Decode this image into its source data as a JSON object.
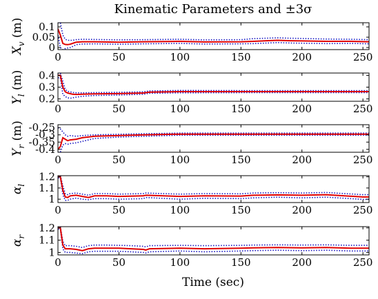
{
  "chart_data": {
    "type": "line",
    "title": "Kinematic Parameters and ±3σ",
    "xlabel": "Time (sec)",
    "xlim": [
      0,
      255
    ],
    "xticks": [
      0,
      50,
      100,
      150,
      200,
      250
    ],
    "colors": {
      "mean": "#e00000",
      "bounds": "#1010c0"
    },
    "panels": [
      {
        "ylabel": "X_v (m)",
        "ylabel_main": "X",
        "ylabel_sub": "v",
        "ylabel_unit": " (m)",
        "ylim": [
          -0.01,
          0.12
        ],
        "yticks": [
          0,
          0.05,
          0.1
        ],
        "yticklabels": [
          "0",
          "0.05",
          "0.1"
        ],
        "x": [
          0,
          2,
          4,
          6,
          8,
          10,
          12,
          15,
          20,
          30,
          50,
          70,
          100,
          120,
          150,
          160,
          180,
          190,
          200,
          220,
          240,
          255
        ],
        "mean": [
          0.09,
          0.06,
          0.02,
          0.015,
          0.014,
          0.016,
          0.02,
          0.026,
          0.028,
          0.028,
          0.026,
          0.028,
          0.03,
          0.027,
          0.028,
          0.03,
          0.035,
          0.033,
          0.032,
          0.03,
          0.03,
          0.028
        ],
        "upper": [
          0.12,
          0.12,
          0.06,
          0.04,
          0.035,
          0.035,
          0.035,
          0.038,
          0.04,
          0.039,
          0.037,
          0.038,
          0.04,
          0.037,
          0.038,
          0.043,
          0.047,
          0.045,
          0.044,
          0.041,
          0.04,
          0.038
        ],
        "lower": [
          0.06,
          0.0,
          -0.01,
          -0.005,
          -0.002,
          0.0,
          0.005,
          0.014,
          0.017,
          0.018,
          0.016,
          0.018,
          0.02,
          0.017,
          0.018,
          0.019,
          0.024,
          0.022,
          0.021,
          0.019,
          0.02,
          0.018
        ]
      },
      {
        "ylabel": "Y_l (m)",
        "ylabel_main": "Y",
        "ylabel_sub": "l",
        "ylabel_unit": " (m)",
        "ylim": [
          0.18,
          0.42
        ],
        "yticks": [
          0.2,
          0.3,
          0.4
        ],
        "yticklabels": [
          "0.2",
          "0.3",
          "0.4"
        ],
        "x": [
          0,
          2,
          4,
          6,
          8,
          10,
          12,
          15,
          20,
          30,
          50,
          70,
          75,
          100,
          150,
          200,
          255
        ],
        "mean": [
          0.4,
          0.4,
          0.3,
          0.26,
          0.25,
          0.245,
          0.24,
          0.238,
          0.24,
          0.243,
          0.245,
          0.25,
          0.258,
          0.262,
          0.262,
          0.262,
          0.262
        ],
        "upper": [
          0.42,
          0.42,
          0.35,
          0.28,
          0.265,
          0.26,
          0.255,
          0.252,
          0.252,
          0.254,
          0.256,
          0.26,
          0.268,
          0.272,
          0.271,
          0.271,
          0.271
        ],
        "lower": [
          0.38,
          0.38,
          0.24,
          0.22,
          0.21,
          0.205,
          0.21,
          0.215,
          0.222,
          0.229,
          0.233,
          0.24,
          0.248,
          0.252,
          0.253,
          0.253,
          0.253
        ]
      },
      {
        "ylabel": "Y_r (m)",
        "ylabel_main": "Y",
        "ylabel_sub": "r",
        "ylabel_unit": " (m)",
        "ylim": [
          -0.42,
          -0.23
        ],
        "yticks": [
          -0.4,
          -0.35,
          -0.3,
          -0.25
        ],
        "yticklabels": [
          "-0.4",
          "-0.35",
          "-0.3",
          "-0.25"
        ],
        "x": [
          0,
          2,
          4,
          6,
          8,
          10,
          15,
          20,
          30,
          50,
          70,
          100,
          150,
          200,
          255
        ],
        "mean": [
          -0.4,
          -0.38,
          -0.32,
          -0.33,
          -0.34,
          -0.335,
          -0.33,
          -0.32,
          -0.31,
          -0.305,
          -0.3,
          -0.295,
          -0.295,
          -0.295,
          -0.295
        ],
        "upper": [
          -0.25,
          -0.26,
          -0.28,
          -0.3,
          -0.31,
          -0.305,
          -0.31,
          -0.305,
          -0.3,
          -0.296,
          -0.292,
          -0.288,
          -0.288,
          -0.288,
          -0.288
        ],
        "lower": [
          -0.42,
          -0.42,
          -0.37,
          -0.36,
          -0.365,
          -0.36,
          -0.355,
          -0.345,
          -0.325,
          -0.315,
          -0.31,
          -0.302,
          -0.302,
          -0.302,
          -0.302
        ]
      },
      {
        "ylabel": "α_l",
        "ylabel_main": "α",
        "ylabel_sub": "l",
        "ylabel_unit": "",
        "ylim": [
          0.97,
          1.21
        ],
        "yticks": [
          1.0,
          1.1,
          1.2
        ],
        "yticklabels": [
          "1",
          "1.1",
          "1.2"
        ],
        "x": [
          0,
          2,
          4,
          6,
          8,
          10,
          15,
          20,
          25,
          30,
          40,
          50,
          70,
          72,
          100,
          120,
          150,
          160,
          180,
          200,
          220,
          250,
          255
        ],
        "mean": [
          1.2,
          1.2,
          1.08,
          1.02,
          1.015,
          1.03,
          1.035,
          1.025,
          1.015,
          1.03,
          1.03,
          1.025,
          1.03,
          1.035,
          1.025,
          1.03,
          1.028,
          1.035,
          1.038,
          1.035,
          1.04,
          1.02,
          1.02
        ],
        "upper": [
          1.21,
          1.21,
          1.12,
          1.05,
          1.04,
          1.05,
          1.055,
          1.045,
          1.035,
          1.05,
          1.05,
          1.045,
          1.05,
          1.055,
          1.045,
          1.05,
          1.048,
          1.055,
          1.058,
          1.055,
          1.06,
          1.04,
          1.04
        ],
        "lower": [
          1.19,
          1.19,
          1.04,
          0.99,
          0.99,
          1.0,
          1.01,
          1.0,
          0.995,
          1.005,
          1.005,
          1.0,
          1.005,
          1.015,
          1.0,
          1.008,
          1.005,
          1.012,
          1.018,
          1.012,
          1.018,
          0.998,
          0.998
        ]
      },
      {
        "ylabel": "α_r",
        "ylabel_main": "α",
        "ylabel_sub": "r",
        "ylabel_unit": "",
        "ylim": [
          0.98,
          1.21
        ],
        "yticks": [
          1.0,
          1.1,
          1.2
        ],
        "yticklabels": [
          "1",
          "1.1",
          "1.2"
        ],
        "x": [
          0,
          2,
          4,
          6,
          8,
          10,
          15,
          20,
          25,
          30,
          40,
          50,
          60,
          70,
          72,
          75,
          100,
          120,
          150,
          160,
          180,
          200,
          220,
          240,
          255
        ],
        "mean": [
          1.2,
          1.2,
          1.06,
          1.03,
          1.03,
          1.03,
          1.025,
          1.015,
          1.03,
          1.035,
          1.035,
          1.035,
          1.03,
          1.025,
          1.02,
          1.03,
          1.035,
          1.03,
          1.035,
          1.038,
          1.04,
          1.038,
          1.04,
          1.035,
          1.035
        ],
        "upper": [
          1.21,
          1.21,
          1.09,
          1.055,
          1.055,
          1.055,
          1.05,
          1.04,
          1.055,
          1.06,
          1.06,
          1.058,
          1.055,
          1.05,
          1.045,
          1.055,
          1.058,
          1.055,
          1.058,
          1.06,
          1.062,
          1.06,
          1.062,
          1.058,
          1.058
        ],
        "lower": [
          1.19,
          1.19,
          1.03,
          1.0,
          1.0,
          1.0,
          0.995,
          0.99,
          1.005,
          1.01,
          1.01,
          1.01,
          1.005,
          1.0,
          0.995,
          1.005,
          1.012,
          1.005,
          1.012,
          1.015,
          1.018,
          1.015,
          1.018,
          1.012,
          1.012
        ]
      }
    ]
  }
}
